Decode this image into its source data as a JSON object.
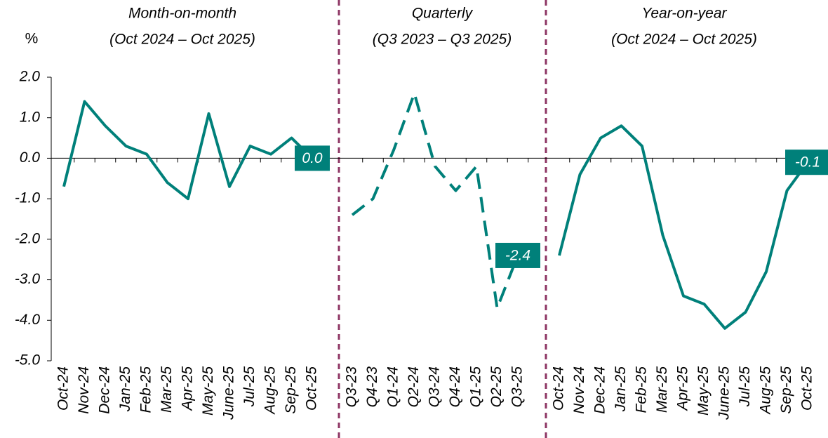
{
  "chart_data": [
    {
      "type": "line",
      "title": "Month-on-month",
      "subtitle": "(Oct 2024 – Oct 2025)",
      "y_label": "%",
      "categories": [
        "Oct-24",
        "Nov-24",
        "Dec-24",
        "Jan-25",
        "Feb-25",
        "Mar-25",
        "Apr-25",
        "May-25",
        "June-25",
        "Jul-25",
        "Aug-25",
        "Sep-25",
        "Oct-25"
      ],
      "values": [
        -0.7,
        1.4,
        0.8,
        0.3,
        0.1,
        -0.6,
        -1.0,
        1.1,
        -0.7,
        0.3,
        0.1,
        0.5,
        0.0
      ],
      "value_labels": [
        null,
        null,
        null,
        null,
        null,
        null,
        null,
        null,
        null,
        null,
        null,
        null,
        "0.0"
      ],
      "color": "#00807a",
      "line_style": "solid",
      "ylim": [
        -5,
        2
      ],
      "yticks": [
        {
          "value": 2,
          "label": "2.0"
        },
        {
          "value": 1,
          "label": "1.0"
        },
        {
          "value": 0,
          "label": "0.0"
        },
        {
          "value": -1,
          "label": "-1.0"
        },
        {
          "value": -2,
          "label": "-2.0"
        },
        {
          "value": -3,
          "label": "-3.0"
        },
        {
          "value": -4,
          "label": "-4.0"
        },
        {
          "value": -5,
          "label": "-5.0"
        }
      ]
    },
    {
      "type": "line",
      "title": "Quarterly",
      "subtitle": "(Q3 2023 – Q3 2025)",
      "categories": [
        "Q3-23",
        "Q4-23",
        "Q1-24",
        "Q2-24",
        "Q3-24",
        "Q4-24",
        "Q1-25",
        "Q2-25",
        "Q3-25"
      ],
      "values": [
        -1.4,
        -1.0,
        0.2,
        1.6,
        -0.2,
        -0.8,
        -0.2,
        -3.7,
        -2.4
      ],
      "value_labels": [
        null,
        null,
        null,
        null,
        null,
        null,
        null,
        null,
        "-2.4"
      ],
      "color": "#00807a",
      "line_style": "dashed"
    },
    {
      "type": "line",
      "title": "Year-on-year",
      "subtitle": "(Oct 2024 – Oct 2025)",
      "categories": [
        "Oct-24",
        "Nov-24",
        "Dec-24",
        "Jan-25",
        "Feb-25",
        "Mar-25",
        "Apr-25",
        "May-25",
        "June-25",
        "Jul-25",
        "Aug-25",
        "Sep-25",
        "Oct-25"
      ],
      "values": [
        -2.4,
        -0.4,
        0.5,
        0.8,
        0.3,
        -1.9,
        -3.4,
        -3.6,
        -4.2,
        -3.8,
        -2.8,
        -0.8,
        -0.1
      ],
      "value_labels": [
        null,
        null,
        null,
        null,
        null,
        null,
        null,
        null,
        null,
        null,
        null,
        null,
        "-0.1"
      ],
      "color": "#00807a",
      "line_style": "solid"
    }
  ]
}
